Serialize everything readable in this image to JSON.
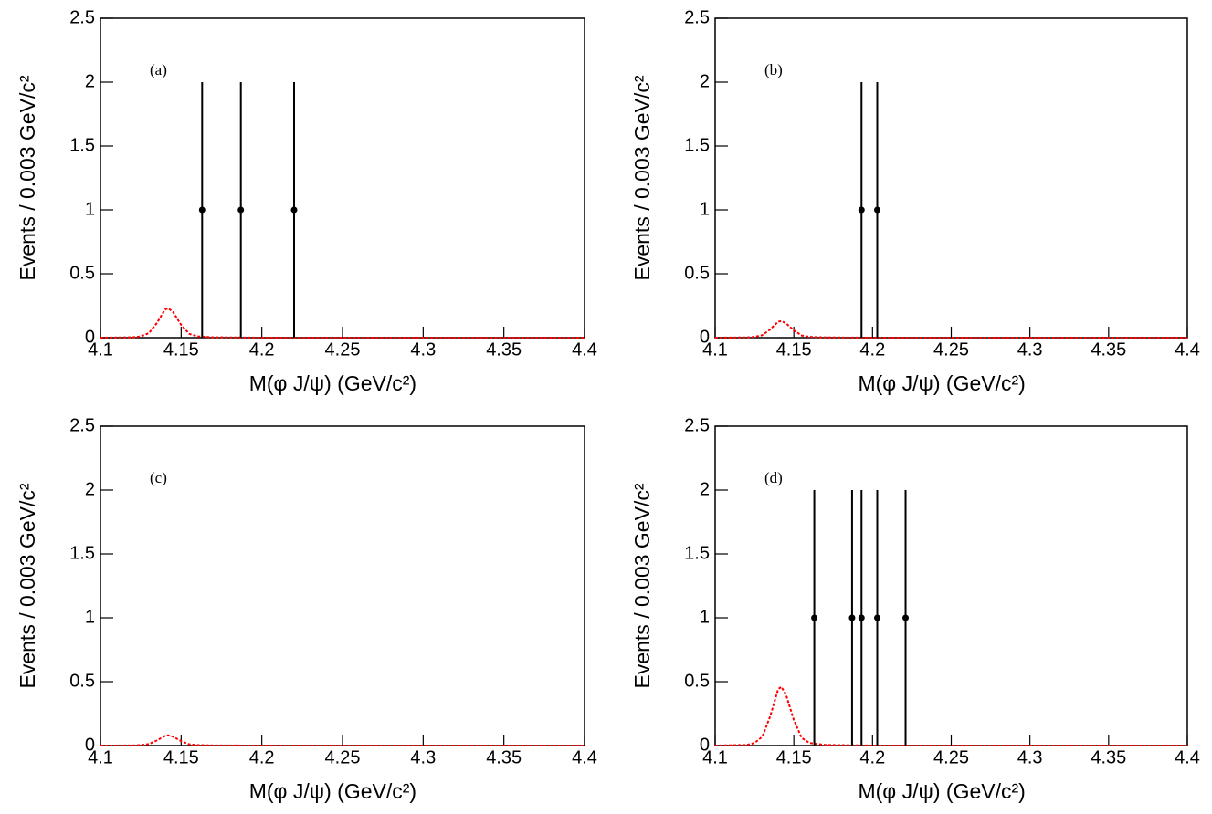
{
  "chart_data": [
    {
      "type": "errorbar",
      "annotation": "(a)",
      "x_label": "M(φ J/ψ) (GeV/c²)",
      "y_label": "Events / 0.003 GeV/c²",
      "xlim": [
        4.1,
        4.4
      ],
      "xticks": [
        4.1,
        4.15,
        4.2,
        4.25,
        4.3,
        4.35,
        4.4
      ],
      "ylim": [
        0,
        2.5
      ],
      "yticks": [
        0,
        0.5,
        1,
        1.5,
        2,
        2.5
      ],
      "series": [
        {
          "type": "line",
          "color": "#ff0000",
          "style": "dotted",
          "x": [
            4.1,
            4.12,
            4.125,
            4.13,
            4.135,
            4.14,
            4.142,
            4.145,
            4.15,
            4.155,
            4.16,
            4.17,
            4.2,
            4.4
          ],
          "values": [
            0,
            0.003,
            0.01,
            0.035,
            0.115,
            0.22,
            0.23,
            0.2,
            0.1,
            0.03,
            0.01,
            0.003,
            0,
            0
          ]
        },
        {
          "type": "errorbar",
          "color": "#000000",
          "x": [
            4.163,
            4.187,
            4.22
          ],
          "values": [
            1,
            1,
            1
          ],
          "errors": [
            1,
            1,
            1
          ]
        }
      ]
    },
    {
      "type": "errorbar",
      "annotation": "(b)",
      "x_label": "M(φ J/ψ) (GeV/c²)",
      "y_label": "Events / 0.003 GeV/c²",
      "xlim": [
        4.1,
        4.4
      ],
      "xticks": [
        4.1,
        4.15,
        4.2,
        4.25,
        4.3,
        4.35,
        4.4
      ],
      "ylim": [
        0,
        2.5
      ],
      "yticks": [
        0,
        0.5,
        1,
        1.5,
        2,
        2.5
      ],
      "series": [
        {
          "type": "line",
          "color": "#ff0000",
          "style": "dotted",
          "x": [
            4.1,
            4.12,
            4.125,
            4.13,
            4.135,
            4.14,
            4.142,
            4.145,
            4.15,
            4.155,
            4.16,
            4.17,
            4.2,
            4.4
          ],
          "values": [
            0,
            0.002,
            0.006,
            0.02,
            0.065,
            0.125,
            0.13,
            0.113,
            0.057,
            0.017,
            0.006,
            0.002,
            0,
            0
          ]
        },
        {
          "type": "errorbar",
          "color": "#000000",
          "x": [
            4.193,
            4.203
          ],
          "values": [
            1,
            1
          ],
          "errors": [
            1,
            1
          ]
        }
      ]
    },
    {
      "type": "errorbar",
      "annotation": "(c)",
      "x_label": "M(φ J/ψ) (GeV/c²)",
      "y_label": "Events / 0.003 GeV/c²",
      "xlim": [
        4.1,
        4.4
      ],
      "xticks": [
        4.1,
        4.15,
        4.2,
        4.25,
        4.3,
        4.35,
        4.4
      ],
      "ylim": [
        0,
        2.5
      ],
      "yticks": [
        0,
        0.5,
        1,
        1.5,
        2,
        2.5
      ],
      "series": [
        {
          "type": "line",
          "color": "#ff0000",
          "style": "dotted",
          "x": [
            4.1,
            4.12,
            4.125,
            4.13,
            4.135,
            4.14,
            4.142,
            4.145,
            4.15,
            4.155,
            4.16,
            4.17,
            4.2,
            4.4
          ],
          "values": [
            0,
            0.001,
            0.004,
            0.012,
            0.04,
            0.076,
            0.08,
            0.07,
            0.035,
            0.01,
            0.004,
            0.001,
            0,
            0
          ]
        },
        {
          "type": "errorbar",
          "color": "#000000",
          "x": [],
          "values": [],
          "errors": []
        }
      ]
    },
    {
      "type": "errorbar",
      "annotation": "(d)",
      "x_label": "M(φ J/ψ) (GeV/c²)",
      "y_label": "Events / 0.003 GeV/c²",
      "xlim": [
        4.1,
        4.4
      ],
      "xticks": [
        4.1,
        4.15,
        4.2,
        4.25,
        4.3,
        4.35,
        4.4
      ],
      "ylim": [
        0,
        2.5
      ],
      "yticks": [
        0,
        0.5,
        1,
        1.5,
        2,
        2.5
      ],
      "series": [
        {
          "type": "line",
          "color": "#ff0000",
          "style": "dotted",
          "x": [
            4.1,
            4.12,
            4.125,
            4.13,
            4.135,
            4.14,
            4.142,
            4.145,
            4.15,
            4.155,
            4.16,
            4.17,
            4.2,
            4.4
          ],
          "values": [
            0,
            0.005,
            0.02,
            0.07,
            0.23,
            0.44,
            0.46,
            0.4,
            0.2,
            0.06,
            0.02,
            0.005,
            0,
            0
          ]
        },
        {
          "type": "errorbar",
          "color": "#000000",
          "x": [
            4.163,
            4.187,
            4.193,
            4.203,
            4.221
          ],
          "values": [
            1,
            1,
            1,
            1,
            1
          ],
          "errors": [
            1,
            1,
            1,
            1,
            1
          ]
        }
      ]
    }
  ]
}
